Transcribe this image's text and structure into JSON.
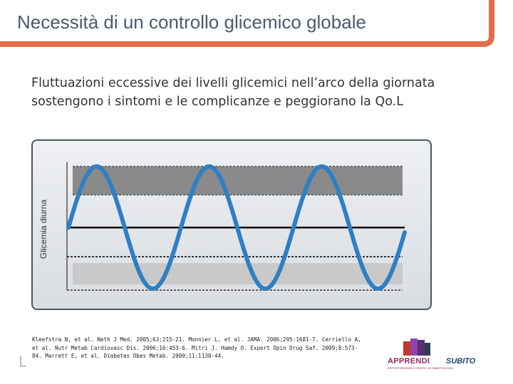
{
  "slide": {
    "title": "Necessità di un controllo glicemico globale",
    "subtitle": "Fluttuazioni eccessive dei livelli glicemici nell’arco della giornata sostengono i sintomi e le complicanze e peggiorano la Qo.L",
    "references": "Kleefstra N, et al. Neth J Med. 2005;63:215-21. Monnier L, et al. JAMA. 2006;295:1681-7. Cerriello A, et al. Nutr Metab Cardiovasc Dis. 2006;16:453-6. Mitri J. Hamdy O. Expert Opin Drug Saf. 2009;8:573-84. Marrett E, et al. Diabetes Obes Metab. 2009;11:1138-44."
  },
  "chart_data": {
    "type": "line",
    "ylabel": "Glicemia diurna",
    "xlabel": "",
    "title": "",
    "grid": false,
    "colors": {
      "curve": "#2f7fc4",
      "high_band": "#8a8a8a",
      "low_band": "#c9c9c9",
      "mid_line": "#000000"
    }
  },
  "logo": {
    "brand": "APPRENDI",
    "brand2": "SUBITO",
    "tagline": "APPROFONDIMENTI PRATICI IN DIABETOLOGIA"
  },
  "colors": {
    "title_frame": "#e46c4a",
    "title_text": "#4a5a6e"
  }
}
